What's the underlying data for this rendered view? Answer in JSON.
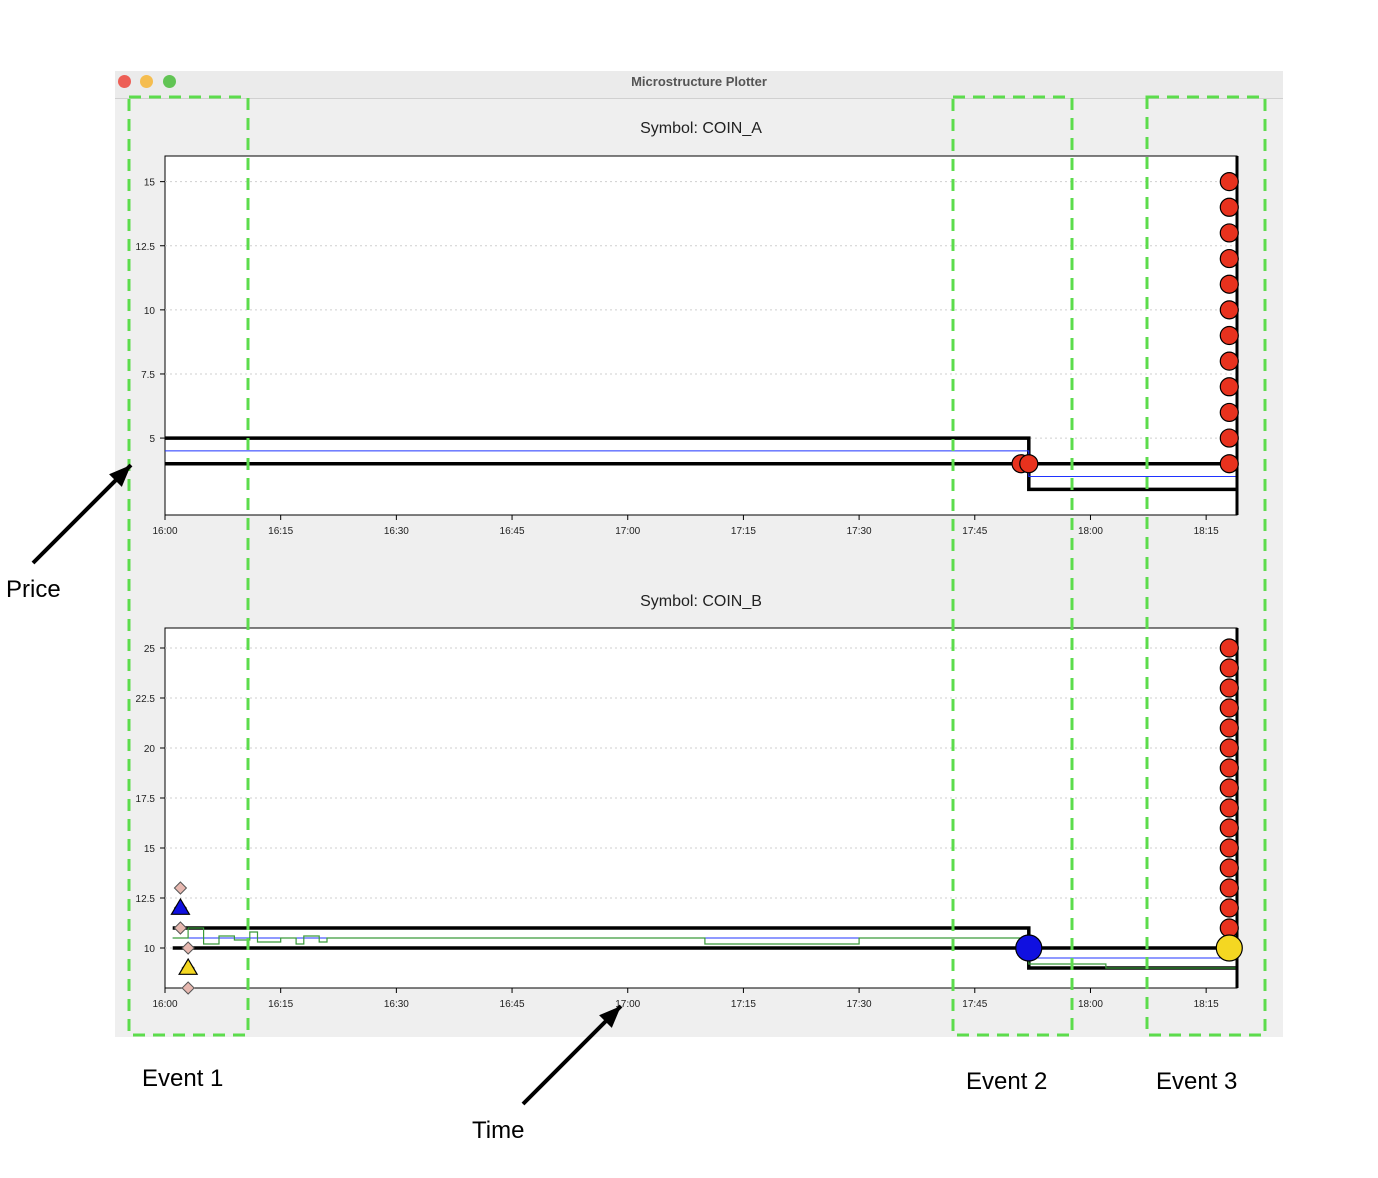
{
  "window": {
    "title": "Microstructure Plotter"
  },
  "annotations": {
    "price_label": "Price",
    "time_label": "Time",
    "events": [
      "Event 1",
      "Event 2",
      "Event 3"
    ]
  },
  "colors": {
    "best_quote": "#000000",
    "mid": "#1f33ff",
    "trade_price": "#3a9a3a",
    "sell_marker": "#e8321e",
    "buy_marker": "#1010e0",
    "yellow_marker": "#f4d722",
    "diamond_marker": "#e7b8b0",
    "event_box": "#5cdc4c"
  },
  "chart_data": [
    {
      "type": "line",
      "title": "Symbol: COIN_A",
      "x_ticks": [
        "16:00",
        "16:15",
        "16:30",
        "16:45",
        "17:00",
        "17:15",
        "17:30",
        "17:45",
        "18:00",
        "18:15"
      ],
      "y_ticks": [
        "5",
        "7.5",
        "10",
        "12.5",
        "15"
      ],
      "xlim": [
        "16:00",
        "18:19"
      ],
      "ylim": [
        2,
        16
      ],
      "grid": "horizontal dotted",
      "series": [
        {
          "role": "ask",
          "points": [
            [
              "16:00",
              5.0
            ],
            [
              "17:52",
              5.0
            ],
            [
              "17:52",
              3.0
            ],
            [
              "18:19",
              3.0
            ]
          ]
        },
        {
          "role": "bid",
          "points": [
            [
              "16:00",
              4.0
            ],
            [
              "17:52",
              4.0
            ],
            [
              "17:52",
              4.0
            ],
            [
              "18:19",
              4.0
            ]
          ]
        },
        {
          "role": "mid",
          "points": [
            [
              "16:00",
              4.5
            ],
            [
              "17:52",
              4.5
            ],
            [
              "17:52",
              3.5
            ],
            [
              "18:19",
              3.5
            ]
          ]
        }
      ],
      "markers": [
        {
          "shape": "circle",
          "color": "sell",
          "time": "17:51",
          "values": [
            4.0
          ]
        },
        {
          "shape": "circle",
          "color": "sell",
          "time": "17:52",
          "values": [
            4.0
          ]
        },
        {
          "shape": "circle",
          "color": "sell",
          "time": "18:18",
          "values": [
            4,
            5,
            6,
            7,
            8,
            9,
            10,
            11,
            12,
            13,
            14,
            15
          ]
        }
      ]
    },
    {
      "type": "line",
      "title": "Symbol: COIN_B",
      "x_ticks": [
        "16:00",
        "16:15",
        "16:30",
        "16:45",
        "17:00",
        "17:15",
        "17:30",
        "17:45",
        "18:00",
        "18:15"
      ],
      "y_ticks": [
        "10",
        "12.5",
        "15",
        "17.5",
        "20",
        "22.5",
        "25"
      ],
      "xlim": [
        "16:00",
        "18:19"
      ],
      "ylim": [
        8,
        26
      ],
      "grid": "horizontal dotted",
      "series": [
        {
          "role": "ask",
          "points": [
            [
              "16:01",
              11.0
            ],
            [
              "17:52",
              11.0
            ],
            [
              "17:52",
              9.0
            ],
            [
              "18:19",
              9.0
            ]
          ]
        },
        {
          "role": "bid",
          "points": [
            [
              "16:01",
              10.0
            ],
            [
              "17:52",
              10.0
            ],
            [
              "17:52",
              10.0
            ],
            [
              "18:19",
              10.0
            ]
          ]
        },
        {
          "role": "mid",
          "points": [
            [
              "16:01",
              10.5
            ],
            [
              "17:52",
              10.5
            ],
            [
              "17:52",
              9.5
            ],
            [
              "18:19",
              9.5
            ]
          ]
        },
        {
          "role": "trade",
          "points": [
            [
              "16:01",
              10.5
            ],
            [
              "16:03",
              10.5
            ],
            [
              "16:03",
              11.0
            ],
            [
              "16:05",
              11.0
            ],
            [
              "16:05",
              10.2
            ],
            [
              "16:07",
              10.2
            ],
            [
              "16:07",
              10.6
            ],
            [
              "16:09",
              10.6
            ],
            [
              "16:09",
              10.4
            ],
            [
              "16:11",
              10.4
            ],
            [
              "16:11",
              10.8
            ],
            [
              "16:12",
              10.8
            ],
            [
              "16:12",
              10.3
            ],
            [
              "16:15",
              10.3
            ],
            [
              "16:15",
              10.5
            ],
            [
              "16:17",
              10.5
            ],
            [
              "16:17",
              10.2
            ],
            [
              "16:18",
              10.2
            ],
            [
              "16:18",
              10.6
            ],
            [
              "16:20",
              10.6
            ],
            [
              "16:20",
              10.3
            ],
            [
              "16:21",
              10.3
            ],
            [
              "16:21",
              10.5
            ],
            [
              "17:10",
              10.5
            ],
            [
              "17:10",
              10.2
            ],
            [
              "17:30",
              10.2
            ],
            [
              "17:30",
              10.5
            ],
            [
              "17:52",
              10.5
            ],
            [
              "17:52",
              9.2
            ],
            [
              "18:02",
              9.2
            ],
            [
              "18:02",
              9.0
            ],
            [
              "18:19",
              9.0
            ]
          ]
        }
      ],
      "markers": [
        {
          "shape": "diamond",
          "color": "diamond",
          "time": "16:02",
          "values": [
            13.0,
            12.0,
            11.0
          ]
        },
        {
          "shape": "triangle",
          "color": "buy",
          "time": "16:02",
          "values": [
            12.0
          ]
        },
        {
          "shape": "diamond",
          "color": "diamond",
          "time": "16:03",
          "values": [
            10.0,
            9.0,
            8.0
          ]
        },
        {
          "shape": "triangle",
          "color": "yellow",
          "time": "16:03",
          "values": [
            9.0
          ]
        },
        {
          "shape": "circle",
          "color": "buy",
          "time": "17:52",
          "values": [
            10.0
          ]
        },
        {
          "shape": "circle",
          "color": "sell",
          "time": "18:18",
          "values": [
            11,
            12,
            13,
            14,
            15,
            16,
            17,
            18,
            19,
            20,
            21,
            22,
            23,
            24,
            25
          ]
        },
        {
          "shape": "circle",
          "color": "yellow",
          "time": "18:18",
          "values": [
            10.0
          ]
        }
      ]
    }
  ]
}
